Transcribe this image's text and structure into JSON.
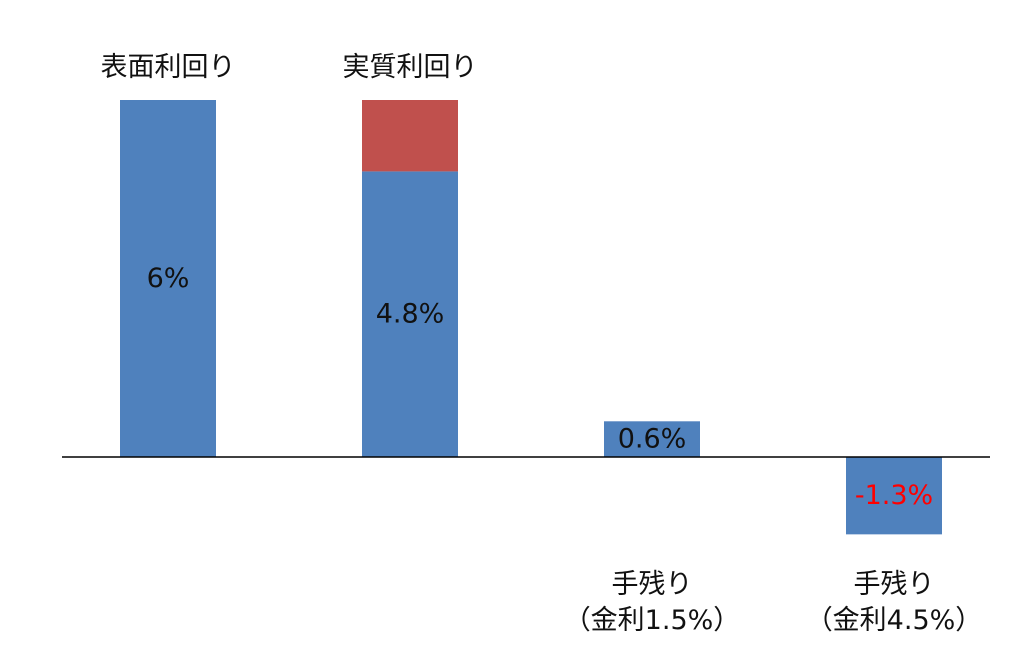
{
  "chart_data": {
    "type": "bar",
    "title": "",
    "xlabel": "",
    "ylabel": "",
    "ylim": [
      -1.3,
      6
    ],
    "grid": false,
    "legend": "none",
    "categories": [
      {
        "lines": [
          "表面利回り"
        ],
        "position": "top"
      },
      {
        "lines": [
          "実質利回り"
        ],
        "position": "top"
      },
      {
        "lines": [
          "手残り",
          "（金利1.5%）"
        ],
        "position": "bottom"
      },
      {
        "lines": [
          "手残り",
          "（金利4.5%）"
        ],
        "position": "bottom"
      }
    ],
    "series": [
      {
        "values": [
          6,
          4.8,
          0.6,
          -1.3
        ],
        "color": "#4f81bd"
      },
      {
        "values": [
          0,
          1.2,
          0,
          0
        ],
        "color": "#c0504d"
      }
    ],
    "data_labels": [
      {
        "text": "6%",
        "color": "#111111"
      },
      {
        "text": "4.8%",
        "color": "#111111"
      },
      {
        "text": "0.6%",
        "color": "#111111"
      },
      {
        "text": "-1.3%",
        "color": "#ff0000"
      }
    ]
  }
}
